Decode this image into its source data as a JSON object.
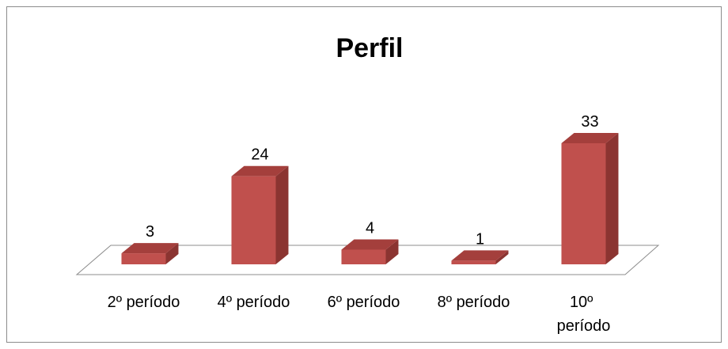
{
  "chart_data": {
    "type": "bar",
    "title": "Perfil",
    "categories": [
      "2º período",
      "4º período",
      "6º período",
      "8º período",
      "10º período"
    ],
    "values": [
      3,
      24,
      4,
      1,
      33
    ],
    "color": "#c0504d"
  }
}
